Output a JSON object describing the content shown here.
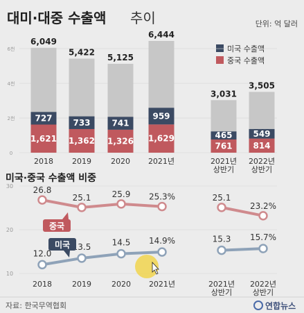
{
  "header": {
    "title_bold": "대미·대중 수출액",
    "title_light": "추이",
    "unit": "단위: 억 달러"
  },
  "legend": {
    "us": "미국 수출액",
    "china": "중국 수출액"
  },
  "section2_title": "미국·중국 수출액 비중",
  "tags": {
    "china": "중국",
    "us": "미국"
  },
  "footer": {
    "source": "자료: 한국무역협회",
    "logo": "연합뉴스"
  },
  "colors": {
    "background": "#ececec",
    "bar_total": "#c7c7c7",
    "us": "#3b4a63",
    "china": "#c0595e",
    "us_line": "#8ea2b8",
    "china_line": "#cf8a8d",
    "cursor_highlight": "#f2d23a"
  },
  "chart_data": [
    {
      "type": "bar",
      "title": "대미·대중 수출액 추이",
      "unit": "단위: 억 달러",
      "categories": [
        "2018",
        "2019",
        "2020",
        "2021년",
        "2021년 상반기",
        "2022년 상반기"
      ],
      "category_lines": [
        [
          "2018"
        ],
        [
          "2019"
        ],
        [
          "2020"
        ],
        [
          "2021년"
        ],
        [
          "2021년",
          "상반기"
        ],
        [
          "2022년",
          "상반기"
        ]
      ],
      "y_ticks": [
        {
          "value": 0,
          "label": "0"
        },
        {
          "value": 2000,
          "label": "2천"
        },
        {
          "value": 4000,
          "label": "4천"
        },
        {
          "value": 6000,
          "label": "6천"
        }
      ],
      "ylim": [
        0,
        7000
      ],
      "series": [
        {
          "name": "중국 수출액",
          "values": [
            1621,
            1362,
            1326,
            1629,
            761,
            814
          ]
        },
        {
          "name": "미국 수출액",
          "values": [
            727,
            733,
            741,
            959,
            465,
            549
          ]
        }
      ],
      "totals": [
        6049,
        5422,
        5125,
        6444,
        3031,
        3505
      ],
      "labels": {
        "china": [
          "1,621",
          "1,362",
          "1,326",
          "1,629",
          "761",
          "814"
        ],
        "us": [
          "727",
          "733",
          "741",
          "959",
          "465",
          "549"
        ],
        "totals": [
          "6,049",
          "5,422",
          "5,125",
          "6,444",
          "3,031",
          "3,505"
        ]
      },
      "legend_position": "top-right"
    },
    {
      "type": "line",
      "title": "미국·중국 수출액 비중",
      "categories": [
        "2018",
        "2019",
        "2020",
        "2021년",
        "2021년 상반기",
        "2022년 상반기"
      ],
      "category_lines": [
        [
          "2018"
        ],
        [
          "2019"
        ],
        [
          "2020"
        ],
        [
          "2021년"
        ],
        [
          "2021년",
          "상반기"
        ],
        [
          "2022년",
          "상반기"
        ]
      ],
      "y_ticks": [
        {
          "value": 10,
          "label": "10"
        },
        {
          "value": 20,
          "label": "20"
        },
        {
          "value": 30,
          "label": "30"
        }
      ],
      "ylim": [
        10,
        31
      ],
      "series": [
        {
          "name": "중국",
          "values": [
            26.8,
            25.1,
            25.9,
            25.3,
            25.1,
            23.2
          ],
          "labels": [
            "26.8",
            "25.1",
            "25.9",
            "25.3%",
            "25.1",
            "23.2%"
          ]
        },
        {
          "name": "미국",
          "values": [
            12.0,
            13.5,
            14.5,
            14.9,
            15.3,
            15.7
          ],
          "labels": [
            "12.0",
            "13.5",
            "14.5",
            "14.9%",
            "15.3",
            "15.7%"
          ]
        }
      ],
      "segments": [
        [
          0,
          1,
          2,
          3
        ],
        [
          4,
          5
        ]
      ]
    }
  ]
}
